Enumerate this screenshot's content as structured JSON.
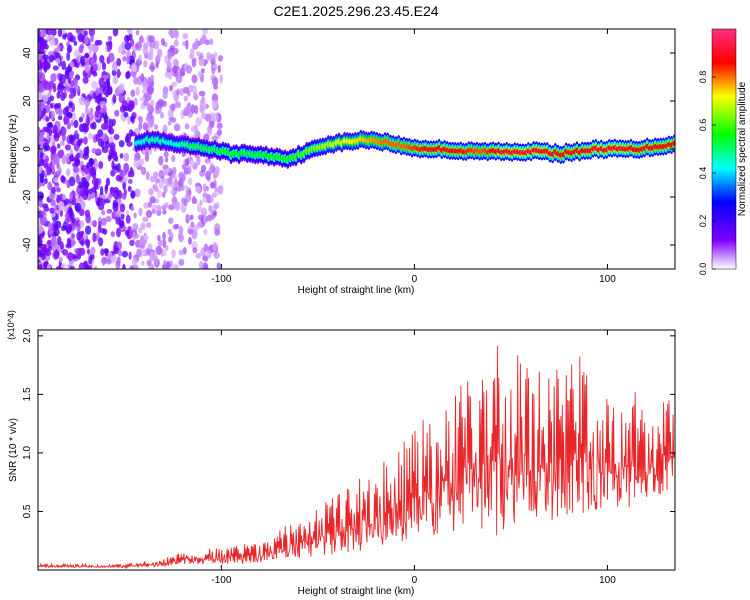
{
  "title": "C2E1.2025.296.23.45.E24",
  "chart_data": [
    {
      "type": "heatmap",
      "name": "spectrogram",
      "xlabel": "Height of straight line (km)",
      "ylabel": "Frequency (Hz)",
      "xlim": [
        -195,
        135
      ],
      "ylim": [
        -50,
        50
      ],
      "xticks": [
        -100,
        0,
        100
      ],
      "xtick_labels": [
        "-100",
        "0",
        "100"
      ],
      "yticks": [
        -40,
        -20,
        0,
        20,
        40
      ],
      "ytick_labels": [
        "-40",
        "-20",
        "0",
        "20",
        "40"
      ],
      "colorbar": {
        "label": "Normalized spectral amplitude",
        "range": [
          0,
          1
        ],
        "ticks": [
          0.0,
          0.2,
          0.4,
          0.6,
          0.8
        ],
        "tick_labels": [
          "0.0",
          "0.2",
          "0.4",
          "0.6",
          "0.8"
        ],
        "colors": [
          "#ffffff",
          "#8000ff",
          "#0000ff",
          "#00ffff",
          "#00ff00",
          "#ffff00",
          "#ff0000"
        ]
      },
      "ridge": {
        "x": [
          -144,
          -135,
          -125,
          -115,
          -105,
          -95,
          -85,
          -75,
          -65,
          -55,
          -45,
          -35,
          -25,
          -15,
          -5,
          5,
          15,
          25,
          35,
          45,
          55,
          65,
          75,
          85,
          95,
          105,
          115,
          125,
          135
        ],
        "y": [
          3,
          4,
          2,
          1,
          0,
          -2,
          -2,
          -3,
          -4,
          -1,
          2,
          3,
          4,
          3,
          1,
          0,
          0,
          -1,
          -1,
          -1,
          -1,
          -1,
          -2,
          -1,
          0,
          0,
          0,
          1,
          2
        ],
        "peak_amplitude": [
          0.45,
          0.5,
          0.45,
          0.55,
          0.55,
          0.6,
          0.55,
          0.6,
          0.6,
          0.65,
          0.7,
          0.75,
          0.8,
          0.85,
          0.85,
          0.9,
          0.9,
          0.9,
          0.85,
          0.95,
          0.95,
          0.95,
          0.9,
          0.9,
          0.95,
          0.95,
          0.9,
          0.9,
          0.9
        ]
      }
    },
    {
      "type": "line",
      "name": "snr",
      "xlabel": "Height of straight line (km)",
      "ylabel": "SNR (10 * v/v)",
      "y_multiplier": "(x10^4)",
      "xlim": [
        -195,
        135
      ],
      "ylim": [
        0,
        2.05
      ],
      "xticks": [
        -100,
        0,
        100
      ],
      "xtick_labels": [
        "-100",
        "0",
        "100"
      ],
      "yticks": [
        0.5,
        1.0,
        1.5,
        2.0
      ],
      "ytick_labels": [
        "0.5",
        "1.0",
        "1.5",
        "2.0"
      ],
      "color": "#e8262a",
      "series": [
        {
          "name": "SNR upper envelope",
          "x": [
            -195,
            -170,
            -150,
            -130,
            -120,
            -110,
            -100,
            -90,
            -80,
            -70,
            -60,
            -50,
            -40,
            -30,
            -20,
            -10,
            0,
            10,
            20,
            30,
            40,
            50,
            60,
            70,
            80,
            90,
            100,
            110,
            120,
            130,
            135
          ],
          "values": [
            0.05,
            0.05,
            0.05,
            0.1,
            0.18,
            0.18,
            0.2,
            0.22,
            0.25,
            0.35,
            0.45,
            0.55,
            0.65,
            0.75,
            0.95,
            1.05,
            1.2,
            1.4,
            1.55,
            1.7,
            2.0,
            1.85,
            1.95,
            1.7,
            1.85,
            1.8,
            1.55,
            1.65,
            1.4,
            1.5,
            1.45
          ]
        },
        {
          "name": "SNR lower envelope",
          "x": [
            -195,
            -170,
            -150,
            -130,
            -120,
            -110,
            -100,
            -90,
            -80,
            -70,
            -60,
            -50,
            -40,
            -30,
            -20,
            -10,
            0,
            10,
            20,
            30,
            40,
            50,
            60,
            70,
            80,
            90,
            100,
            110,
            120,
            130,
            135
          ],
          "values": [
            0.02,
            0.02,
            0.02,
            0.03,
            0.04,
            0.05,
            0.05,
            0.05,
            0.06,
            0.08,
            0.1,
            0.12,
            0.12,
            0.15,
            0.18,
            0.2,
            0.2,
            0.25,
            0.3,
            0.35,
            0.25,
            0.35,
            0.3,
            0.4,
            0.35,
            0.45,
            0.5,
            0.5,
            0.55,
            0.65,
            0.7
          ]
        }
      ]
    }
  ]
}
